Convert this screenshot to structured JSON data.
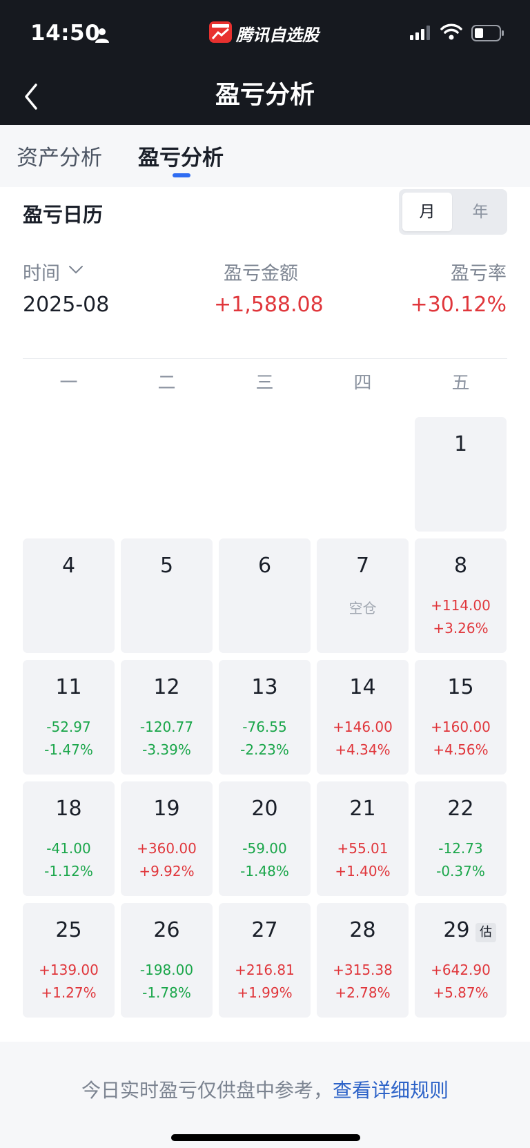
{
  "status_bar": {
    "time": "14:50",
    "app_name": "腾讯自选股"
  },
  "nav": {
    "title": "盈亏分析"
  },
  "tabs": [
    {
      "label": "资产分析"
    },
    {
      "label": "盈亏分析",
      "active": true
    }
  ],
  "calendar": {
    "title": "盈亏日历",
    "period_toggle": {
      "month": "月",
      "year": "年",
      "selected": "月"
    }
  },
  "summary": {
    "time_label": "时间",
    "amount_label": "盈亏金额",
    "rate_label": "盈亏率",
    "month": "2025-08",
    "amount": "+1,588.08",
    "rate": "+30.12%"
  },
  "weekdays": [
    "一",
    "二",
    "三",
    "四",
    "五"
  ],
  "days": [
    {
      "day": "1",
      "amount": "",
      "rate": ""
    },
    {
      "day": "4",
      "amount": "",
      "rate": ""
    },
    {
      "day": "5",
      "amount": "",
      "rate": ""
    },
    {
      "day": "6",
      "amount": "",
      "rate": ""
    },
    {
      "day": "7",
      "amount": "空仓",
      "rate": ""
    },
    {
      "day": "8",
      "amount": "+114.00",
      "rate": "+3.26%"
    },
    {
      "day": "11",
      "amount": "-52.97",
      "rate": "-1.47%"
    },
    {
      "day": "12",
      "amount": "-120.77",
      "rate": "-3.39%"
    },
    {
      "day": "13",
      "amount": "-76.55",
      "rate": "-2.23%"
    },
    {
      "day": "14",
      "amount": "+146.00",
      "rate": "+4.34%"
    },
    {
      "day": "15",
      "amount": "+160.00",
      "rate": "+4.56%"
    },
    {
      "day": "18",
      "amount": "-41.00",
      "rate": "-1.12%"
    },
    {
      "day": "19",
      "amount": "+360.00",
      "rate": "+9.92%"
    },
    {
      "day": "20",
      "amount": "-59.00",
      "rate": "-1.48%"
    },
    {
      "day": "21",
      "amount": "+55.01",
      "rate": "+1.40%"
    },
    {
      "day": "22",
      "amount": "-12.73",
      "rate": "-0.37%"
    },
    {
      "day": "25",
      "amount": "+139.00",
      "rate": "+1.27%"
    },
    {
      "day": "26",
      "amount": "-198.00",
      "rate": "-1.78%"
    },
    {
      "day": "27",
      "amount": "+216.81",
      "rate": "+1.99%"
    },
    {
      "day": "28",
      "amount": "+315.38",
      "rate": "+2.78%"
    },
    {
      "day": "29",
      "amount": "+642.90",
      "rate": "+5.87%",
      "badge": "估"
    }
  ],
  "footer": {
    "note": "今日实时盈亏仅供盘中参考，",
    "link": "查看详细规则"
  },
  "colors": {
    "gain": "#e0363b",
    "loss": "#1aa64a",
    "accent": "#2f6cf2",
    "header_bg": "#16191f"
  }
}
